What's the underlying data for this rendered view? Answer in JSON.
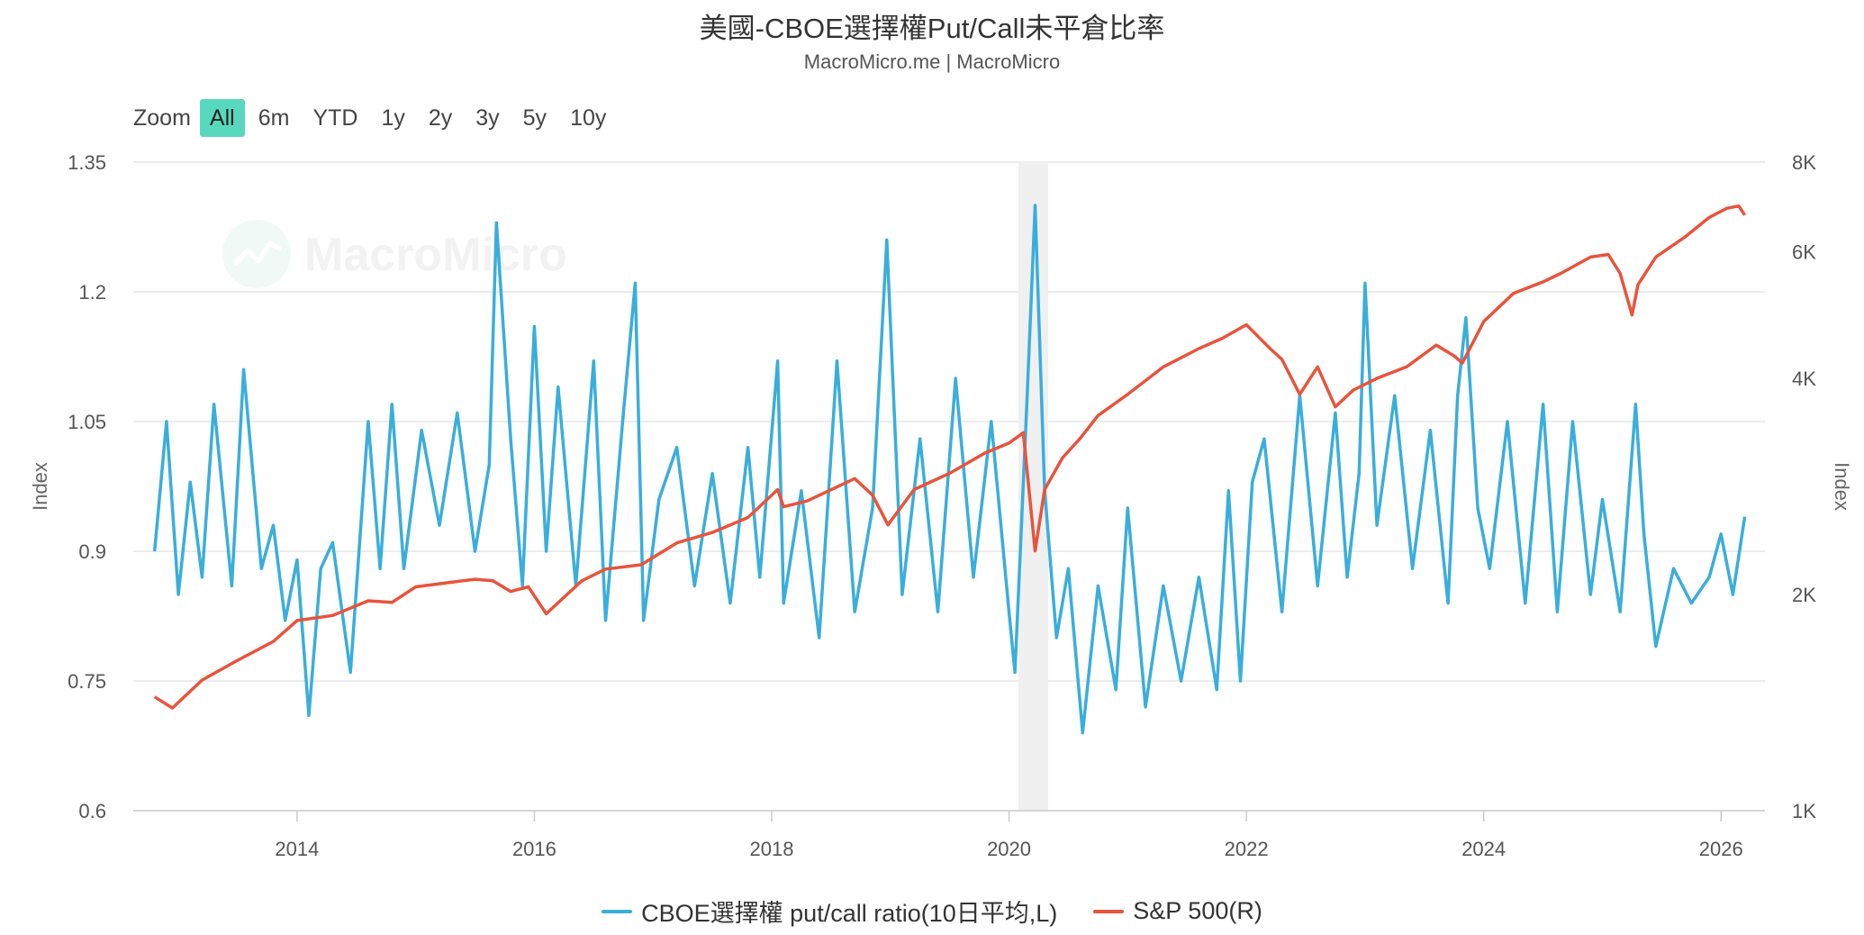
{
  "header": {
    "title": "美國-CBOE選擇權Put/Call未平倉比率",
    "subtitle": "MacroMicro.me | MacroMicro"
  },
  "zoom": {
    "label": "Zoom",
    "buttons": [
      "All",
      "6m",
      "YTD",
      "1y",
      "2y",
      "3y",
      "5y",
      "10y"
    ],
    "active": "All"
  },
  "watermark": {
    "text": "MacroMicro"
  },
  "chart_data": {
    "type": "line",
    "xlabel": "",
    "x_ticks": [
      "2014",
      "2016",
      "2018",
      "2020",
      "2022",
      "2024",
      "2026"
    ],
    "xlim": [
      2012.62,
      2026.37
    ],
    "y_left": {
      "label": "Index",
      "ticks": [
        "1.35",
        "1.2",
        "1.05",
        "0.9",
        "0.75",
        "0.6"
      ],
      "ylim": [
        0.6,
        1.35
      ]
    },
    "y_right": {
      "label": "Index",
      "ticks": [
        "8K",
        "6K",
        "4K",
        "2K",
        "1K"
      ],
      "ylim": [
        1000,
        8000
      ],
      "scale": "log"
    },
    "shaded_band": [
      2020.08,
      2020.33
    ],
    "grid": true,
    "legend_position": "bottom",
    "series": [
      {
        "name": "CBOE選擇權 put/call ratio(10日平均,L)",
        "axis": "left",
        "color": "#3aaedb",
        "x": [
          2012.8,
          2012.9,
          2013.0,
          2013.1,
          2013.2,
          2013.3,
          2013.45,
          2013.55,
          2013.7,
          2013.8,
          2013.9,
          2014.0,
          2014.1,
          2014.2,
          2014.3,
          2014.45,
          2014.6,
          2014.7,
          2014.8,
          2014.9,
          2015.05,
          2015.2,
          2015.35,
          2015.5,
          2015.62,
          2015.68,
          2015.8,
          2015.9,
          2016.0,
          2016.1,
          2016.2,
          2016.35,
          2016.5,
          2016.6,
          2016.75,
          2016.85,
          2016.92,
          2017.05,
          2017.2,
          2017.35,
          2017.5,
          2017.65,
          2017.8,
          2017.9,
          2018.05,
          2018.1,
          2018.25,
          2018.4,
          2018.55,
          2018.7,
          2018.85,
          2018.97,
          2019.1,
          2019.25,
          2019.4,
          2019.55,
          2019.7,
          2019.85,
          2020.0,
          2020.05,
          2020.15,
          2020.22,
          2020.3,
          2020.4,
          2020.5,
          2020.62,
          2020.75,
          2020.9,
          2021.0,
          2021.15,
          2021.3,
          2021.45,
          2021.6,
          2021.75,
          2021.85,
          2021.95,
          2022.05,
          2022.15,
          2022.3,
          2022.45,
          2022.6,
          2022.75,
          2022.85,
          2022.95,
          2023.0,
          2023.1,
          2023.25,
          2023.4,
          2023.55,
          2023.7,
          2023.78,
          2023.85,
          2023.95,
          2024.05,
          2024.2,
          2024.35,
          2024.5,
          2024.62,
          2024.75,
          2024.9,
          2025.0,
          2025.15,
          2025.28,
          2025.35,
          2025.45,
          2025.6,
          2025.75,
          2025.9,
          2026.0,
          2026.1,
          2026.2
        ],
        "y": [
          0.9,
          1.05,
          0.85,
          0.98,
          0.87,
          1.07,
          0.86,
          1.11,
          0.88,
          0.93,
          0.82,
          0.89,
          0.71,
          0.88,
          0.91,
          0.76,
          1.05,
          0.88,
          1.07,
          0.88,
          1.04,
          0.93,
          1.06,
          0.9,
          1.0,
          1.28,
          1.03,
          0.86,
          1.16,
          0.9,
          1.09,
          0.86,
          1.12,
          0.82,
          1.06,
          1.21,
          0.82,
          0.96,
          1.02,
          0.86,
          0.99,
          0.84,
          1.02,
          0.87,
          1.12,
          0.84,
          0.97,
          0.8,
          1.12,
          0.83,
          0.95,
          1.26,
          0.85,
          1.03,
          0.83,
          1.1,
          0.87,
          1.05,
          0.83,
          0.76,
          1.07,
          1.3,
          0.97,
          0.8,
          0.88,
          0.69,
          0.86,
          0.74,
          0.95,
          0.72,
          0.86,
          0.75,
          0.87,
          0.74,
          0.97,
          0.75,
          0.98,
          1.03,
          0.83,
          1.08,
          0.86,
          1.06,
          0.87,
          0.99,
          1.21,
          0.93,
          1.08,
          0.88,
          1.04,
          0.84,
          1.08,
          1.17,
          0.95,
          0.88,
          1.05,
          0.84,
          1.07,
          0.83,
          1.05,
          0.85,
          0.96,
          0.83,
          1.07,
          0.92,
          0.79,
          0.88,
          0.84,
          0.87,
          0.92,
          0.85,
          0.94
        ]
      },
      {
        "name": "S&P 500(R)",
        "axis": "right",
        "color": "#e8543c",
        "x": [
          2012.8,
          2012.95,
          2013.2,
          2013.5,
          2013.8,
          2014.0,
          2014.3,
          2014.6,
          2014.8,
          2015.0,
          2015.3,
          2015.5,
          2015.65,
          2015.8,
          2015.95,
          2016.1,
          2016.4,
          2016.6,
          2016.9,
          2017.2,
          2017.5,
          2017.8,
          2018.05,
          2018.1,
          2018.3,
          2018.7,
          2018.85,
          2018.98,
          2019.2,
          2019.5,
          2019.8,
          2020.0,
          2020.12,
          2020.22,
          2020.3,
          2020.45,
          2020.6,
          2020.75,
          2021.0,
          2021.3,
          2021.6,
          2021.8,
          2022.0,
          2022.2,
          2022.3,
          2022.45,
          2022.6,
          2022.75,
          2022.9,
          2023.1,
          2023.35,
          2023.6,
          2023.75,
          2023.82,
          2024.0,
          2024.25,
          2024.5,
          2024.65,
          2024.9,
          2025.05,
          2025.15,
          2025.25,
          2025.3,
          2025.45,
          2025.7,
          2025.9,
          2026.05,
          2026.15,
          2026.2
        ],
        "y": [
          1440,
          1390,
          1520,
          1620,
          1720,
          1840,
          1870,
          1960,
          1950,
          2050,
          2080,
          2100,
          2090,
          2020,
          2050,
          1880,
          2090,
          2170,
          2200,
          2360,
          2440,
          2560,
          2800,
          2650,
          2700,
          2900,
          2750,
          2500,
          2800,
          2950,
          3150,
          3250,
          3360,
          2300,
          2800,
          3100,
          3300,
          3550,
          3800,
          4150,
          4400,
          4550,
          4750,
          4400,
          4250,
          3800,
          4150,
          3650,
          3850,
          4000,
          4150,
          4450,
          4300,
          4200,
          4800,
          5250,
          5450,
          5600,
          5900,
          5950,
          5600,
          4900,
          5400,
          5900,
          6300,
          6700,
          6900,
          6950,
          6750
        ]
      }
    ]
  }
}
